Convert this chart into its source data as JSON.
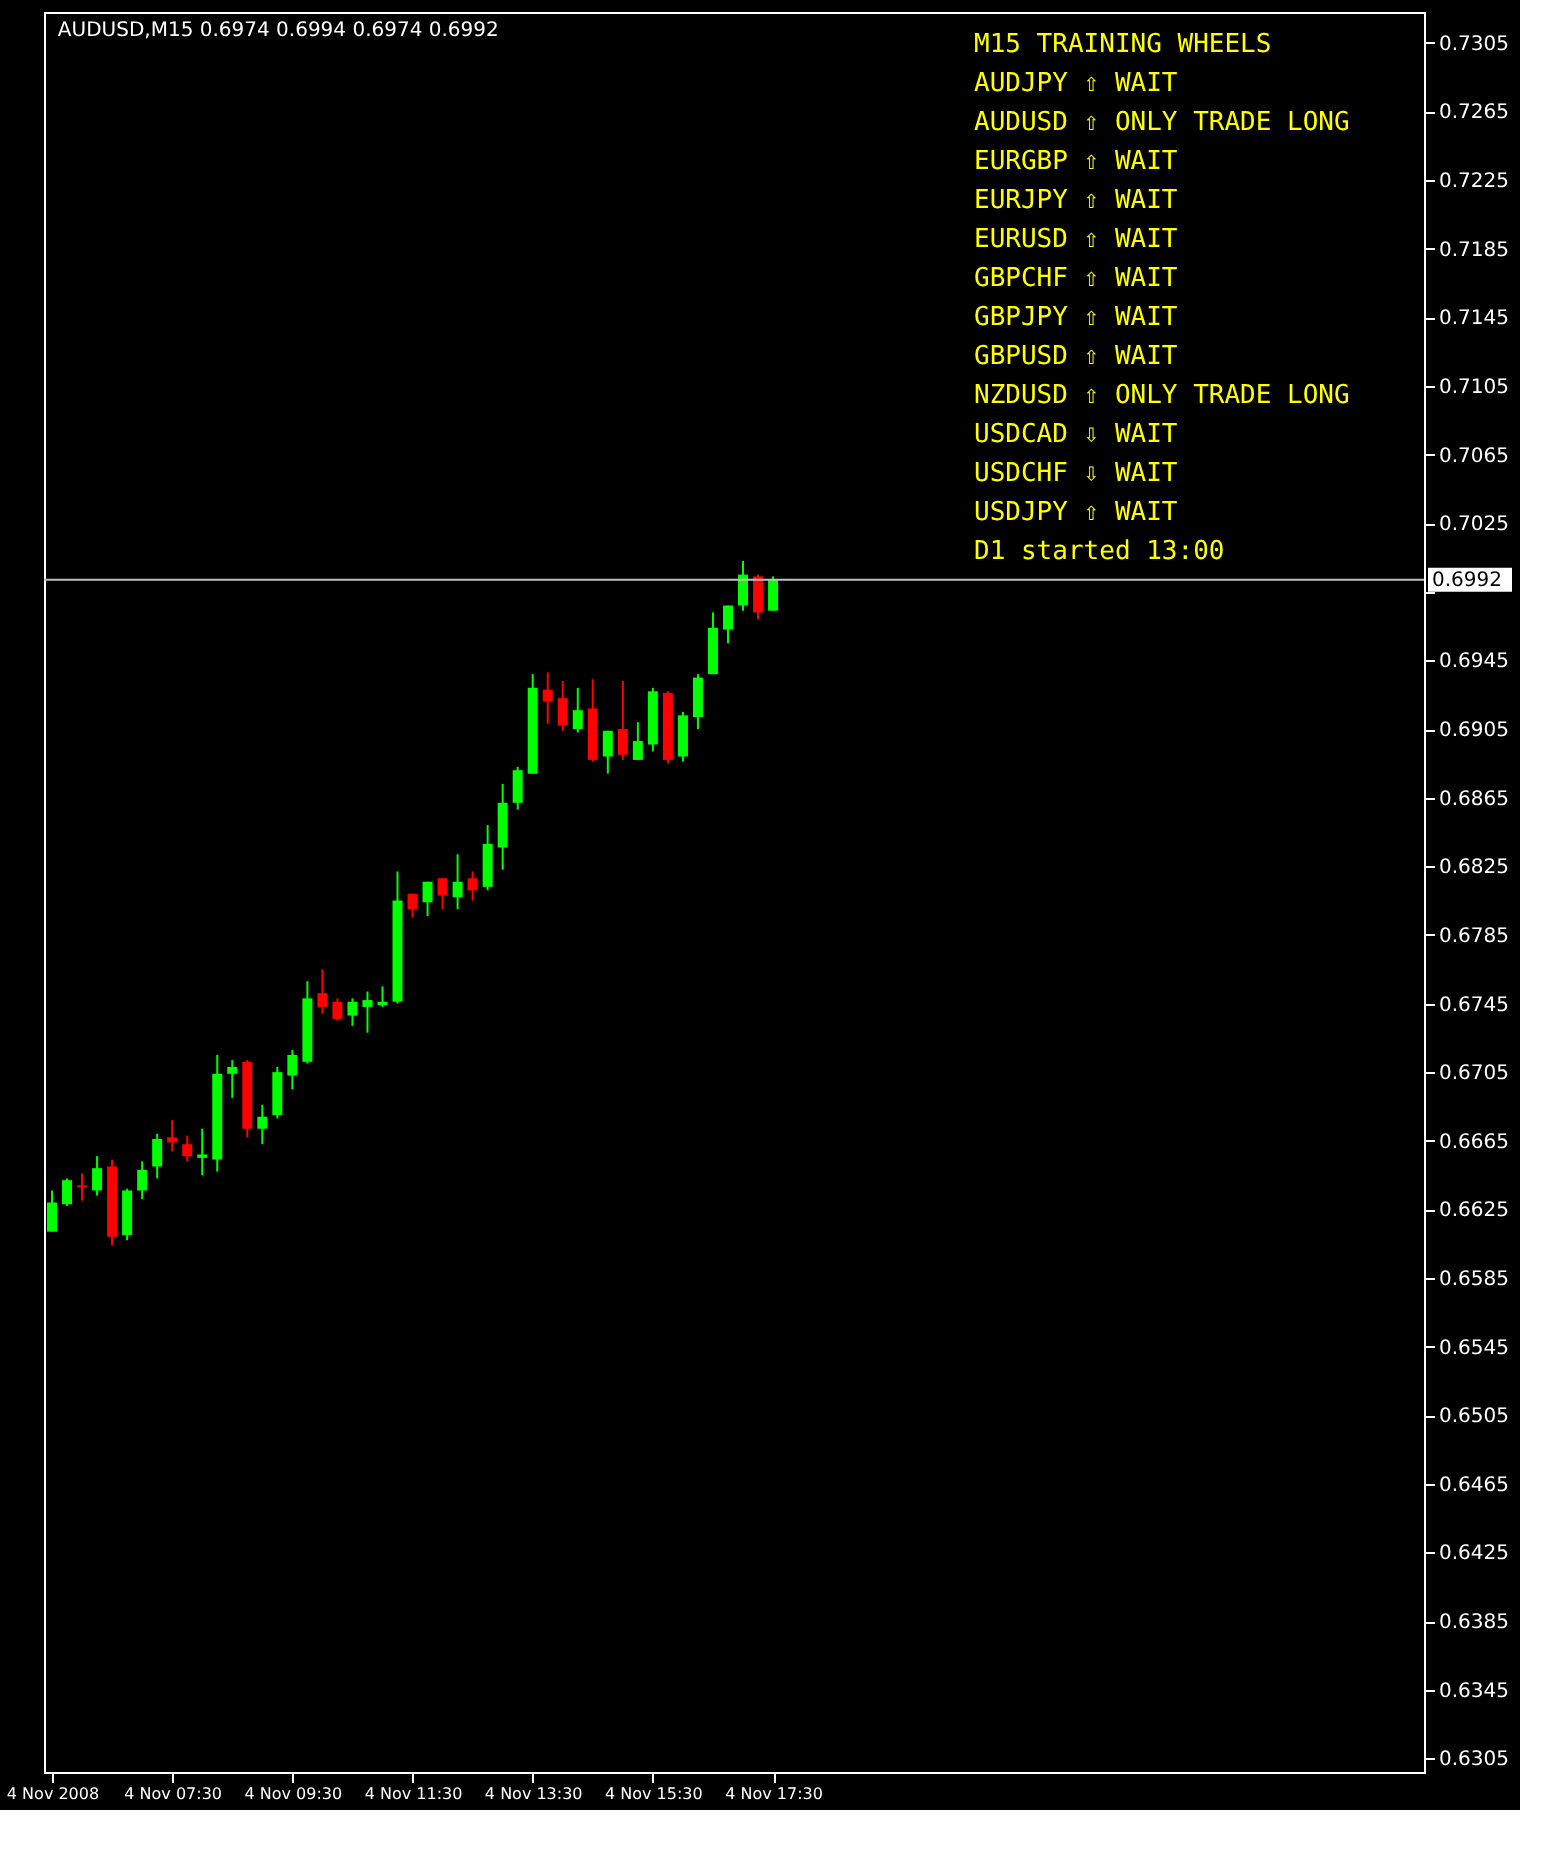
{
  "chart_data": {
    "type": "candlestick",
    "title": "AUDUSD,M15  0.6974 0.6994 0.6974 0.6992",
    "x": [
      "2008-11-04T05:30",
      "2008-11-04T05:45",
      "2008-11-04T06:00",
      "2008-11-04T06:15",
      "2008-11-04T06:30",
      "2008-11-04T06:45",
      "2008-11-04T07:00",
      "2008-11-04T07:15",
      "2008-11-04T07:30",
      "2008-11-04T07:45",
      "2008-11-04T08:00",
      "2008-11-04T08:15",
      "2008-11-04T08:30",
      "2008-11-04T08:45",
      "2008-11-04T09:00",
      "2008-11-04T09:15",
      "2008-11-04T09:30",
      "2008-11-04T09:45",
      "2008-11-04T10:00",
      "2008-11-04T10:15",
      "2008-11-04T10:30",
      "2008-11-04T10:45",
      "2008-11-04T11:00",
      "2008-11-04T11:15",
      "2008-11-04T11:30",
      "2008-11-04T11:45",
      "2008-11-04T12:00",
      "2008-11-04T12:15",
      "2008-11-04T12:30",
      "2008-11-04T12:45",
      "2008-11-04T13:00",
      "2008-11-04T13:15",
      "2008-11-04T13:30",
      "2008-11-04T13:45",
      "2008-11-04T14:00",
      "2008-11-04T14:15",
      "2008-11-04T14:30",
      "2008-11-04T14:45",
      "2008-11-04T15:00",
      "2008-11-04T15:15",
      "2008-11-04T15:30",
      "2008-11-04T15:45",
      "2008-11-04T16:00",
      "2008-11-04T16:15",
      "2008-11-04T16:30",
      "2008-11-04T16:45",
      "2008-11-04T17:00",
      "2008-11-04T17:15",
      "2008-11-04T17:30"
    ],
    "ohlc": [
      [
        0.6612,
        0.6636,
        0.6612,
        0.6629
      ],
      [
        0.6628,
        0.6643,
        0.6627,
        0.6642
      ],
      [
        0.6639,
        0.6646,
        0.663,
        0.6638
      ],
      [
        0.6636,
        0.6656,
        0.6633,
        0.6649
      ],
      [
        0.665,
        0.6654,
        0.6604,
        0.6609
      ],
      [
        0.661,
        0.6637,
        0.6607,
        0.6636
      ],
      [
        0.6636,
        0.6653,
        0.6631,
        0.6648
      ],
      [
        0.665,
        0.6669,
        0.6643,
        0.6666
      ],
      [
        0.6667,
        0.6677,
        0.6659,
        0.6664
      ],
      [
        0.6663,
        0.6668,
        0.6653,
        0.6656
      ],
      [
        0.6655,
        0.6672,
        0.6645,
        0.6657
      ],
      [
        0.6654,
        0.6715,
        0.6647,
        0.6704
      ],
      [
        0.6704,
        0.6712,
        0.669,
        0.6708
      ],
      [
        0.6711,
        0.6712,
        0.6667,
        0.6672
      ],
      [
        0.6672,
        0.6686,
        0.6663,
        0.6679
      ],
      [
        0.668,
        0.6708,
        0.6678,
        0.6705
      ],
      [
        0.6703,
        0.6718,
        0.6695,
        0.6715
      ],
      [
        0.6711,
        0.6758,
        0.671,
        0.6748
      ],
      [
        0.6751,
        0.6765,
        0.6739,
        0.6743
      ],
      [
        0.6746,
        0.6748,
        0.6735,
        0.6736
      ],
      [
        0.6738,
        0.6748,
        0.6732,
        0.6746
      ],
      [
        0.6743,
        0.6752,
        0.6728,
        0.6747
      ],
      [
        0.6744,
        0.6755,
        0.6743,
        0.6746
      ],
      [
        0.6746,
        0.6822,
        0.6745,
        0.6805
      ],
      [
        0.6809,
        0.6809,
        0.6795,
        0.68
      ],
      [
        0.6804,
        0.6816,
        0.6796,
        0.6816
      ],
      [
        0.6818,
        0.6818,
        0.68,
        0.6808
      ],
      [
        0.6807,
        0.6832,
        0.68,
        0.6816
      ],
      [
        0.6818,
        0.6822,
        0.6805,
        0.6811
      ],
      [
        0.6813,
        0.6849,
        0.6811,
        0.6838
      ],
      [
        0.6836,
        0.6873,
        0.6823,
        0.6862
      ],
      [
        0.6862,
        0.6883,
        0.6858,
        0.6881
      ],
      [
        0.6879,
        0.6937,
        0.6879,
        0.6929
      ],
      [
        0.6928,
        0.6938,
        0.6908,
        0.6921
      ],
      [
        0.6923,
        0.6933,
        0.6904,
        0.6907
      ],
      [
        0.6905,
        0.6929,
        0.6903,
        0.6916
      ],
      [
        0.6917,
        0.6934,
        0.6886,
        0.6887
      ],
      [
        0.6889,
        0.6904,
        0.6879,
        0.6904
      ],
      [
        0.6905,
        0.6933,
        0.6887,
        0.689
      ],
      [
        0.6887,
        0.6909,
        0.6887,
        0.6898
      ],
      [
        0.6896,
        0.6929,
        0.6892,
        0.6927
      ],
      [
        0.6926,
        0.6927,
        0.6885,
        0.6887
      ],
      [
        0.6889,
        0.6915,
        0.6886,
        0.6913
      ],
      [
        0.6912,
        0.6937,
        0.6905,
        0.6935
      ],
      [
        0.6937,
        0.6973,
        0.6937,
        0.6964
      ],
      [
        0.6963,
        0.6977,
        0.6955,
        0.6977
      ],
      [
        0.6977,
        0.7003,
        0.6974,
        0.6995
      ],
      [
        0.6994,
        0.6995,
        0.6969,
        0.6973
      ],
      [
        0.6974,
        0.6994,
        0.6974,
        0.6992
      ]
    ],
    "colors": [
      "#00ff00",
      "#00ff00",
      "#ff0000",
      "#00ff00",
      "#ff0000",
      "#00ff00",
      "#00ff00",
      "#00ff00",
      "#ff0000",
      "#ff0000",
      "#00ff00",
      "#00ff00",
      "#00ff00",
      "#ff0000",
      "#00ff00",
      "#00ff00",
      "#00ff00",
      "#00ff00",
      "#ff0000",
      "#ff0000",
      "#00ff00",
      "#00ff00",
      "#00ff00",
      "#00ff00",
      "#ff0000",
      "#00ff00",
      "#ff0000",
      "#00ff00",
      "#ff0000",
      "#00ff00",
      "#00ff00",
      "#00ff00",
      "#00ff00",
      "#ff0000",
      "#ff0000",
      "#00ff00",
      "#ff0000",
      "#00ff00",
      "#ff0000",
      "#00ff00",
      "#00ff00",
      "#ff0000",
      "#00ff00",
      "#00ff00",
      "#00ff00",
      "#00ff00",
      "#00ff00",
      "#ff0000",
      "#00ff00"
    ],
    "xlim": [
      "2008-11-04T05:22",
      "2008-11-05T04:20"
    ],
    "xticks": [
      {
        "value": "2008-11-04T05:30",
        "label": "4 Nov 2008"
      },
      {
        "value": "2008-11-04T07:30",
        "label": "4 Nov 07:30"
      },
      {
        "value": "2008-11-04T09:30",
        "label": "4 Nov 09:30"
      },
      {
        "value": "2008-11-04T11:30",
        "label": "4 Nov 11:30"
      },
      {
        "value": "2008-11-04T13:30",
        "label": "4 Nov 13:30"
      },
      {
        "value": "2008-11-04T15:30",
        "label": "4 Nov 15:30"
      },
      {
        "value": "2008-11-04T17:30",
        "label": "4 Nov 17:30"
      }
    ],
    "ylim": [
      0.6297,
      0.7323
    ],
    "yticks": [
      0.6305,
      0.6345,
      0.6385,
      0.6425,
      0.6465,
      0.6505,
      0.6545,
      0.6585,
      0.6625,
      0.6665,
      0.6705,
      0.6745,
      0.6785,
      0.6825,
      0.6865,
      0.6905,
      0.6945,
      {
        "value": 0.6985,
        "label": null
      },
      0.7025,
      0.7065,
      0.7105,
      0.7145,
      0.7185,
      0.7225,
      0.7265,
      0.7305
    ],
    "ref_lines": [
      {
        "axis": "y",
        "value": 0.6992,
        "label": "0.6992",
        "color": "#c0c0c0"
      }
    ],
    "grid": false,
    "annotations": [
      "M15 TRAINING WHEELS",
      "AUDJPY ⇧ WAIT",
      "AUDUSD ⇧ ONLY TRADE LONG",
      "EURGBP ⇧ WAIT",
      "EURJPY ⇧ WAIT",
      "EURUSD ⇧ WAIT",
      "GBPCHF ⇧ WAIT",
      "GBPJPY ⇧ WAIT",
      "GBPUSD ⇧ WAIT",
      "NZDUSD ⇧ ONLY TRADE LONG",
      "USDCAD ⇩ WAIT",
      "USDCHF ⇩ WAIT",
      "USDJPY ⇧ WAIT",
      "D1 started 13:00"
    ]
  }
}
